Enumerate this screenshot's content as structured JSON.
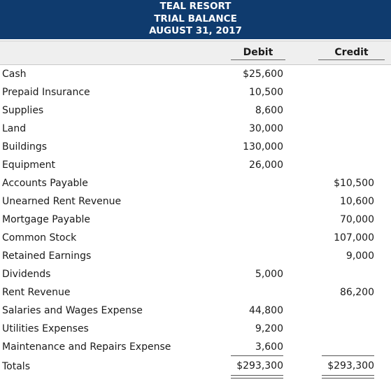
{
  "header": {
    "company": "TEAL RESORT",
    "report": "TRIAL BALANCE",
    "date": "AUGUST 31, 2017"
  },
  "columns": {
    "debit": "Debit",
    "credit": "Credit"
  },
  "rows": [
    {
      "account": "Cash",
      "debit": "$25,600",
      "credit": ""
    },
    {
      "account": "Prepaid Insurance",
      "debit": "10,500",
      "credit": ""
    },
    {
      "account": "Supplies",
      "debit": "8,600",
      "credit": ""
    },
    {
      "account": "Land",
      "debit": "30,000",
      "credit": ""
    },
    {
      "account": "Buildings",
      "debit": "130,000",
      "credit": ""
    },
    {
      "account": "Equipment",
      "debit": "26,000",
      "credit": ""
    },
    {
      "account": "Accounts Payable",
      "debit": "",
      "credit": "$10,500"
    },
    {
      "account": "Unearned Rent Revenue",
      "debit": "",
      "credit": "10,600"
    },
    {
      "account": "Mortgage Payable",
      "debit": "",
      "credit": "70,000"
    },
    {
      "account": "Common Stock",
      "debit": "",
      "credit": "107,000"
    },
    {
      "account": "Retained Earnings",
      "debit": "",
      "credit": "9,000"
    },
    {
      "account": "Dividends",
      "debit": "5,000",
      "credit": ""
    },
    {
      "account": "Rent Revenue",
      "debit": "",
      "credit": "86,200"
    },
    {
      "account": "Salaries and Wages Expense",
      "debit": "44,800",
      "credit": ""
    },
    {
      "account": "Utilities Expenses",
      "debit": "9,200",
      "credit": ""
    },
    {
      "account": "Maintenance and Repairs Expense",
      "debit": "3,600",
      "credit": ""
    }
  ],
  "totals": {
    "label": "Totals",
    "debit": "$293,300",
    "credit": "$293,300"
  },
  "colors": {
    "header_bg": "#0f3b6e",
    "header_text": "#ffffff",
    "colhead_bg": "#efefef"
  }
}
